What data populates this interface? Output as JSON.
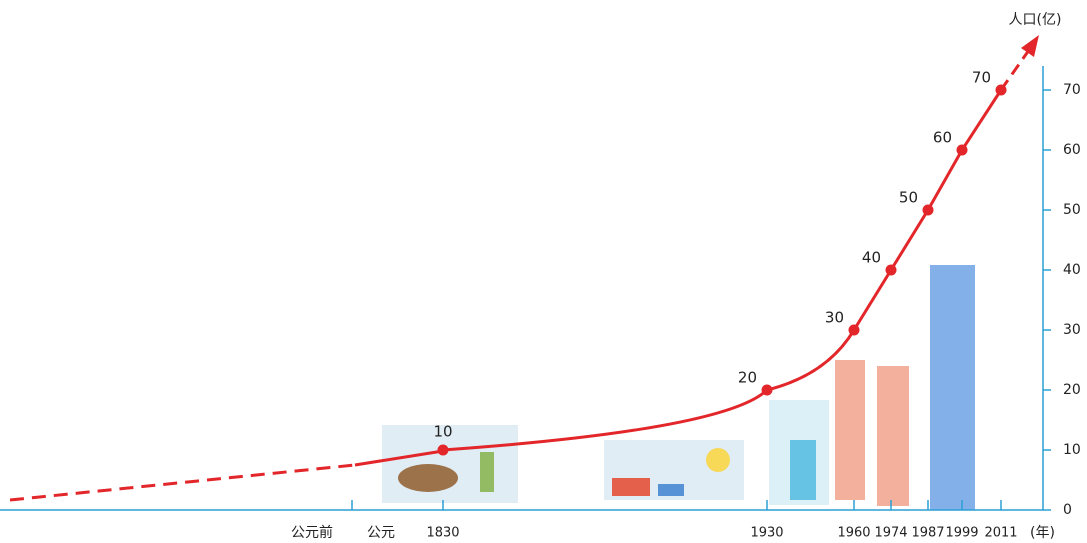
{
  "chart_data": {
    "type": "line",
    "y_label": "人口(亿)",
    "x_label": "(年)",
    "era_labels": [
      "公元前",
      "公元"
    ],
    "categories": [
      "1830",
      "1930",
      "1960",
      "1974",
      "1987",
      "1999",
      "2011"
    ],
    "series": [
      {
        "name": "人口",
        "color": "#e2262a",
        "values": [
          10,
          20,
          30,
          40,
          50,
          60,
          70
        ]
      }
    ],
    "ylim": [
      0,
      74
    ],
    "yticks": [
      0,
      10,
      20,
      30,
      40,
      50,
      60,
      70
    ]
  }
}
